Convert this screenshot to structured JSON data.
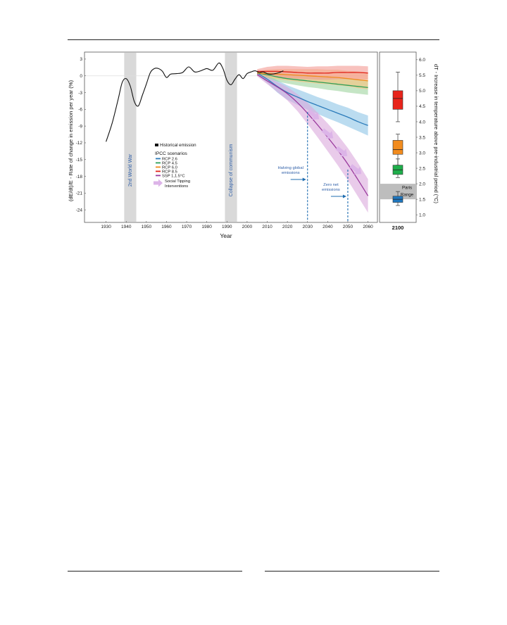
{
  "chart_data": [
    {
      "type": "line",
      "xlabel": "Year",
      "ylabel": "(dE/dt)/E - Rate of change in emission per year (%)",
      "xlim": [
        1920,
        2064
      ],
      "ylim": [
        -26,
        4
      ],
      "x_ticks": [
        1930,
        1940,
        1950,
        1960,
        1970,
        1980,
        1990,
        2000,
        2010,
        2020,
        2030,
        2040,
        2050,
        2060
      ],
      "y_ticks": [
        3,
        0,
        -3,
        -6,
        -9,
        -12,
        -15,
        -18,
        -21,
        -24
      ],
      "historical": {
        "name": "Historical emission",
        "color": "#111111",
        "x": [
          1930,
          1933,
          1936,
          1938,
          1940,
          1942,
          1944,
          1946,
          1948,
          1950,
          1952,
          1954,
          1956,
          1958,
          1960,
          1962,
          1965,
          1968,
          1971,
          1974,
          1977,
          1980,
          1983,
          1986,
          1988,
          1990,
          1992,
          1994,
          1996,
          1998,
          2000,
          2002,
          2004,
          2006,
          2008,
          2010,
          2012,
          2014,
          2016,
          2018
        ],
        "y": [
          -11.8,
          -8.5,
          -4.2,
          -1.2,
          -0.5,
          -1.8,
          -4.6,
          -5.4,
          -3.5,
          -1.5,
          0.6,
          1.3,
          1.3,
          0.8,
          -0.3,
          0.3,
          0.4,
          0.6,
          1.6,
          0.7,
          0.9,
          1.3,
          1.0,
          2.3,
          1.3,
          -0.8,
          -1.6,
          -0.6,
          0.2,
          -0.5,
          0.4,
          0.7,
          0.9,
          0.6,
          0.7,
          0.4,
          0.3,
          0.4,
          0.6,
          0.9
        ]
      },
      "series": [
        {
          "name": "RCP 2.6",
          "color": "#2b7bba",
          "band": "#8ec4e6",
          "x": [
            2005,
            2010,
            2015,
            2020,
            2025,
            2030,
            2035,
            2040,
            2045,
            2050,
            2055,
            2060
          ],
          "y": [
            0.5,
            -0.6,
            -1.9,
            -3.0,
            -3.8,
            -4.6,
            -5.3,
            -6.0,
            -6.7,
            -7.4,
            -8.2,
            -8.9
          ],
          "band_width": [
            0.3,
            0.7,
            1.1,
            1.3,
            1.4,
            1.5,
            1.5,
            1.6,
            1.6,
            1.7,
            1.7,
            1.8
          ]
        },
        {
          "name": "RCP 4.5",
          "color": "#2ca05a",
          "band": "#9fd49e",
          "x": [
            2005,
            2010,
            2015,
            2020,
            2025,
            2030,
            2035,
            2040,
            2045,
            2050,
            2055,
            2060
          ],
          "y": [
            0.5,
            0.2,
            -0.2,
            -0.5,
            -0.7,
            -0.9,
            -1.1,
            -1.3,
            -1.5,
            -1.7,
            -1.9,
            -2.1
          ],
          "band_width": [
            0.3,
            0.6,
            0.8,
            0.9,
            1.0,
            1.1,
            1.1,
            1.2,
            1.2,
            1.3,
            1.3,
            1.3
          ]
        },
        {
          "name": "RCP 6.0",
          "color": "#f08c1e",
          "band": "#f8c27c",
          "x": [
            2005,
            2010,
            2015,
            2020,
            2025,
            2030,
            2035,
            2040,
            2045,
            2050,
            2055,
            2060
          ],
          "y": [
            0.5,
            0.4,
            0.3,
            0.2,
            0.1,
            0.0,
            -0.1,
            -0.2,
            -0.3,
            -0.5,
            -0.7,
            -0.9
          ],
          "band_width": [
            0.3,
            0.7,
            0.9,
            1.0,
            1.1,
            1.2,
            1.3,
            1.3,
            1.4,
            1.4,
            1.5,
            1.5
          ]
        },
        {
          "name": "RCP 8.5",
          "color": "#e0251b",
          "band": "#f39a93",
          "x": [
            2005,
            2010,
            2015,
            2020,
            2025,
            2030,
            2035,
            2040,
            2045,
            2050,
            2055,
            2060
          ],
          "y": [
            0.8,
            0.8,
            0.8,
            0.7,
            0.6,
            0.5,
            0.5,
            0.5,
            0.6,
            0.6,
            0.6,
            0.5
          ],
          "band_width": [
            0.4,
            0.8,
            1.0,
            1.1,
            1.1,
            1.1,
            1.2,
            1.2,
            1.2,
            1.2,
            1.2,
            1.2
          ]
        },
        {
          "name": "SSP 1,1.5°C",
          "color": "#9a3a9e",
          "band": "#dba9dc",
          "x": [
            2005,
            2010,
            2015,
            2020,
            2025,
            2030,
            2035,
            2040,
            2045,
            2050,
            2055,
            2060
          ],
          "y": [
            0.2,
            -0.9,
            -2.0,
            -3.2,
            -4.8,
            -6.7,
            -8.8,
            -11.0,
            -13.3,
            -15.8,
            -18.6,
            -21.5
          ],
          "band_width": [
            0.3,
            0.6,
            0.9,
            1.2,
            1.5,
            1.9,
            2.2,
            2.5,
            2.7,
            2.9,
            3.0,
            3.0
          ]
        }
      ],
      "shaded_periods": [
        {
          "label": "2nd World War",
          "x_range": [
            1939,
            1945
          ]
        },
        {
          "label": "Collapse of communism",
          "x_range": [
            1989,
            1995
          ]
        }
      ],
      "legend": {
        "placement": "center-left",
        "historical_label": "Historical emission",
        "scenarios_title": "IPCC scenarios",
        "tipping_label_1": "Social Tipping",
        "tipping_label_2": "Interventions"
      },
      "annotations": {
        "halving_line1": "Halving global",
        "halving_line2": "emissions",
        "halving_year": 2030,
        "zero_line1": "Zero net",
        "zero_line2": "emissions",
        "zero_year": 2050
      },
      "tipping_arrows_color": "#dcb4e8"
    },
    {
      "type": "box",
      "ylabel": "dT - Increase in temperature above pre-industrial period (°C)",
      "xlabel": "2100",
      "ylim": [
        0.8,
        6.2
      ],
      "y_ticks": [
        1.0,
        1.5,
        2.0,
        2.5,
        3.0,
        3.5,
        4.0,
        4.5,
        5.0,
        5.5,
        6.0
      ],
      "paris_range": {
        "label_1": "Paris",
        "label_2": "Range",
        "y_range": [
          1.5,
          2.0
        ]
      },
      "boxes": [
        {
          "scenario": "RCP 8.5",
          "color": "#e8241b",
          "whisker": [
            4.0,
            5.6
          ],
          "q1": 4.4,
          "median": 4.75,
          "q3": 5.0
        },
        {
          "scenario": "RCP 6.0",
          "color": "#f28c1e",
          "whisker": [
            2.6,
            3.6
          ],
          "q1": 2.95,
          "median": 3.1,
          "q3": 3.4
        },
        {
          "scenario": "RCP 4.5",
          "color": "#1fae4b",
          "whisker": [
            2.2,
            2.8
          ],
          "q1": 2.3,
          "median": 2.45,
          "q3": 2.6
        },
        {
          "scenario": "RCP 2.6",
          "color": "#1f78c0",
          "whisker": [
            1.3,
            1.75
          ],
          "q1": 1.4,
          "median": 1.5,
          "q3": 1.6
        }
      ]
    }
  ]
}
